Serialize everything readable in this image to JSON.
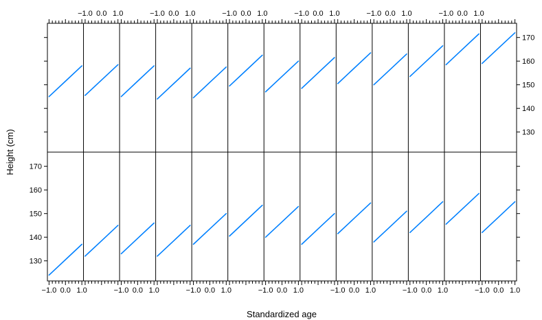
{
  "chart_data": {
    "type": "line",
    "title": "",
    "xlabel": "Standardized age",
    "ylabel": "Height (cm)",
    "layout": {
      "columns": 13,
      "rows": 2
    },
    "xlim": [
      -1.1,
      1.1
    ],
    "ylim": [
      121.5,
      176
    ],
    "x_ticks": [
      -1.0,
      0.0,
      1.0
    ],
    "x_tick_labels": [
      "−1.0",
      "0.0",
      "1.0"
    ],
    "y_ticks": [
      130,
      140,
      150,
      160,
      170
    ],
    "line_color": "#0080ff",
    "panels": [
      {
        "row": "bottom",
        "col": 1,
        "x": [
          -1.0,
          0.0,
          1.0
        ],
        "y": [
          124,
          130.5,
          137
        ]
      },
      {
        "row": "bottom",
        "col": 2,
        "x": [
          -1.0,
          0.0,
          1.0
        ],
        "y": [
          132,
          138.5,
          145
        ]
      },
      {
        "row": "bottom",
        "col": 3,
        "x": [
          -1.0,
          0.0,
          1.0
        ],
        "y": [
          133,
          139.5,
          146
        ]
      },
      {
        "row": "bottom",
        "col": 4,
        "x": [
          -1.0,
          0.0,
          1.0
        ],
        "y": [
          132,
          138.5,
          145
        ]
      },
      {
        "row": "bottom",
        "col": 5,
        "x": [
          -1.0,
          0.0,
          1.0
        ],
        "y": [
          137,
          143.5,
          150
        ]
      },
      {
        "row": "bottom",
        "col": 6,
        "x": [
          -1.0,
          0.0,
          1.0
        ],
        "y": [
          140.5,
          147,
          153.5
        ]
      },
      {
        "row": "bottom",
        "col": 7,
        "x": [
          -1.0,
          0.0,
          1.0
        ],
        "y": [
          140,
          146.5,
          153
        ]
      },
      {
        "row": "bottom",
        "col": 8,
        "x": [
          -1.0,
          0.0,
          1.0
        ],
        "y": [
          137,
          143.5,
          150
        ]
      },
      {
        "row": "bottom",
        "col": 9,
        "x": [
          -1.0,
          0.0,
          1.0
        ],
        "y": [
          141.5,
          148,
          154.5
        ]
      },
      {
        "row": "bottom",
        "col": 10,
        "x": [
          -1.0,
          0.0,
          1.0
        ],
        "y": [
          138,
          144.5,
          151
        ]
      },
      {
        "row": "bottom",
        "col": 11,
        "x": [
          -1.0,
          0.0,
          1.0
        ],
        "y": [
          142,
          148.5,
          155
        ]
      },
      {
        "row": "bottom",
        "col": 12,
        "x": [
          -1.0,
          0.0,
          1.0
        ],
        "y": [
          145.5,
          152,
          158.5
        ]
      },
      {
        "row": "bottom",
        "col": 13,
        "x": [
          -1.0,
          0.0,
          1.0
        ],
        "y": [
          142,
          148.5,
          155
        ]
      },
      {
        "row": "top",
        "col": 1,
        "x": [
          -1.0,
          0.0,
          1.0
        ],
        "y": [
          145,
          151.5,
          158
        ]
      },
      {
        "row": "top",
        "col": 2,
        "x": [
          -1.0,
          0.0,
          1.0
        ],
        "y": [
          145.5,
          152,
          158.5
        ]
      },
      {
        "row": "top",
        "col": 3,
        "x": [
          -1.0,
          0.0,
          1.0
        ],
        "y": [
          145,
          151.5,
          158
        ]
      },
      {
        "row": "top",
        "col": 4,
        "x": [
          -1.0,
          0.0,
          1.0
        ],
        "y": [
          144,
          150.5,
          157
        ]
      },
      {
        "row": "top",
        "col": 5,
        "x": [
          -1.0,
          0.0,
          1.0
        ],
        "y": [
          144.5,
          151,
          157.5
        ]
      },
      {
        "row": "top",
        "col": 6,
        "x": [
          -1.0,
          0.0,
          1.0
        ],
        "y": [
          149.5,
          156,
          162.5
        ]
      },
      {
        "row": "top",
        "col": 7,
        "x": [
          -1.0,
          0.0,
          1.0
        ],
        "y": [
          147,
          153.5,
          160
        ]
      },
      {
        "row": "top",
        "col": 8,
        "x": [
          -1.0,
          0.0,
          1.0
        ],
        "y": [
          148.5,
          155,
          161.5
        ]
      },
      {
        "row": "top",
        "col": 9,
        "x": [
          -1.0,
          0.0,
          1.0
        ],
        "y": [
          150.5,
          157,
          163.5
        ]
      },
      {
        "row": "top",
        "col": 10,
        "x": [
          -1.0,
          0.0,
          1.0
        ],
        "y": [
          150,
          156.5,
          163
        ]
      },
      {
        "row": "top",
        "col": 11,
        "x": [
          -1.0,
          0.0,
          1.0
        ],
        "y": [
          153.5,
          160,
          166.5
        ]
      },
      {
        "row": "top",
        "col": 12,
        "x": [
          -1.0,
          0.0,
          1.0
        ],
        "y": [
          158.5,
          165,
          171.5
        ]
      },
      {
        "row": "top",
        "col": 13,
        "x": [
          -1.0,
          0.0,
          1.0
        ],
        "y": [
          159,
          165.5,
          172
        ]
      }
    ]
  }
}
